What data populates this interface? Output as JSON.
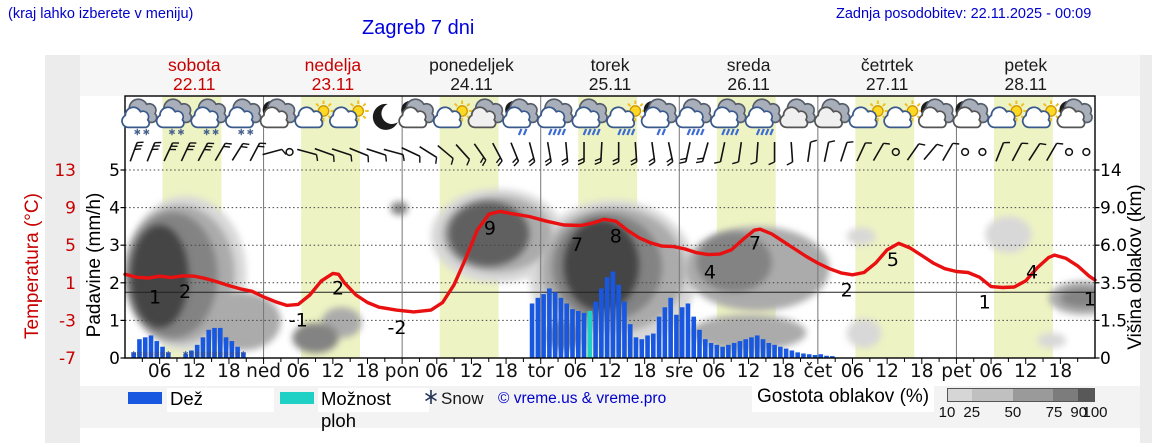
{
  "page": {
    "menu_note": "(kraj lahko izberete v meniju)",
    "title": "Zagreb 7 dni",
    "last_update": "Zadnja posodobitev: 22.11.2025 - 00:09"
  },
  "axes": {
    "temp_label": "Temperatura (°C)",
    "precip_label": "Padavine (mm/h)",
    "cloud_label": "Višina oblakov (km)"
  },
  "legend": {
    "rain": "Dež",
    "shower": "Možnost ploh",
    "snow": "Snow",
    "copyright": "© vreme.us & vreme.pro",
    "cloud_density": "Gostota oblakov (%)",
    "cloud_scale_labels": [
      "10",
      "25",
      "50",
      "75",
      "90",
      "100"
    ]
  },
  "colors": {
    "blue_text": "#0000cc",
    "red_text": "#c80000",
    "temp_line": "#e81010",
    "rain_bar": "#1857e0",
    "shower_bar": "#1fd0c4",
    "daylight_band": "#eef3c3",
    "cloud_scale": [
      "#d6d6d6",
      "#c0c0c0",
      "#9a9a9a",
      "#7c7c7c",
      "#585858"
    ]
  },
  "chart_data": {
    "type": "meteogram",
    "days": [
      {
        "name": "sobota",
        "date": "22.11",
        "color": "#c80000"
      },
      {
        "name": "nedelja",
        "date": "23.11",
        "color": "#c80000"
      },
      {
        "name": "ponedeljek",
        "date": "24.11",
        "color": "#1a1a1a"
      },
      {
        "name": "torek",
        "date": "25.11",
        "color": "#1a1a1a"
      },
      {
        "name": "sreda",
        "date": "26.11",
        "color": "#1a1a1a"
      },
      {
        "name": "četrtek",
        "date": "27.11",
        "color": "#1a1a1a"
      },
      {
        "name": "petek",
        "date": "28.11",
        "color": "#1a1a1a"
      }
    ],
    "day_abbrs": [
      "ned",
      "pon",
      "tor",
      "sre",
      "čet",
      "pet"
    ],
    "hour_labels": [
      "06",
      "12",
      "18"
    ],
    "temp_ticks": [
      "13",
      "9",
      "5",
      "1",
      "-3",
      "-7"
    ],
    "precip_ticks": [
      "5",
      "4",
      "3",
      "2",
      "1",
      "0"
    ],
    "cloud_ticks": [
      "14",
      "9.0",
      "6.0",
      "3.5",
      "1.5",
      "0"
    ],
    "temp_axis_range_c": [
      -7,
      13
    ],
    "precip_axis_range_mmh": [
      0,
      5
    ],
    "cloud_axis_km_ticks": [
      0,
      1.5,
      3.5,
      6.0,
      9.0,
      14
    ],
    "daylight_hours": [
      6.5,
      16.7
    ],
    "temperature_c": [
      [
        0,
        1.9
      ],
      [
        2,
        1.6
      ],
      [
        4,
        1.5
      ],
      [
        6,
        1.7
      ],
      [
        8,
        1.55
      ],
      [
        10,
        1.75
      ],
      [
        12,
        1.7
      ],
      [
        14,
        1.45
      ],
      [
        16,
        1.1
      ],
      [
        18,
        0.7
      ],
      [
        20,
        0.35
      ],
      [
        22,
        0.1
      ],
      [
        24,
        -0.5
      ],
      [
        26,
        -1.0
      ],
      [
        28,
        -1.4
      ],
      [
        30,
        -1.3
      ],
      [
        32,
        -0.3
      ],
      [
        34,
        1.2
      ],
      [
        36,
        2.0
      ],
      [
        37,
        1.9
      ],
      [
        38,
        1.0
      ],
      [
        40,
        -0.3
      ],
      [
        42,
        -1.1
      ],
      [
        44,
        -1.6
      ],
      [
        47,
        -1.9
      ],
      [
        50,
        -2.1
      ],
      [
        53,
        -1.9
      ],
      [
        55,
        -1.1
      ],
      [
        57,
        0.8
      ],
      [
        59,
        3.6
      ],
      [
        61,
        6.6
      ],
      [
        63,
        8.3
      ],
      [
        65,
        8.6
      ],
      [
        67,
        8.35
      ],
      [
        70,
        8.05
      ],
      [
        73,
        7.55
      ],
      [
        76,
        7.15
      ],
      [
        79,
        7.1
      ],
      [
        81,
        7.35
      ],
      [
        83,
        7.75
      ],
      [
        85,
        7.55
      ],
      [
        87,
        6.6
      ],
      [
        89,
        5.8
      ],
      [
        91,
        5.25
      ],
      [
        93,
        4.9
      ],
      [
        95,
        4.85
      ],
      [
        97,
        4.6
      ],
      [
        99,
        4.2
      ],
      [
        101,
        4.0
      ],
      [
        103,
        4.05
      ],
      [
        105,
        4.5
      ],
      [
        107,
        5.6
      ],
      [
        109,
        6.6
      ],
      [
        110,
        6.7
      ],
      [
        112,
        6.2
      ],
      [
        114,
        5.4
      ],
      [
        116,
        4.6
      ],
      [
        118,
        3.8
      ],
      [
        120,
        3.1
      ],
      [
        122,
        2.5
      ],
      [
        124,
        2.05
      ],
      [
        126,
        1.85
      ],
      [
        128,
        2.1
      ],
      [
        130,
        3.1
      ],
      [
        132,
        4.5
      ],
      [
        134,
        5.2
      ],
      [
        136,
        4.7
      ],
      [
        138,
        3.9
      ],
      [
        140,
        3.1
      ],
      [
        142,
        2.5
      ],
      [
        144,
        2.2
      ],
      [
        146,
        2.1
      ],
      [
        148,
        1.6
      ],
      [
        150,
        0.6
      ],
      [
        152,
        0.5
      ],
      [
        154,
        0.55
      ],
      [
        156,
        1.2
      ],
      [
        158,
        2.6
      ],
      [
        160,
        3.7
      ],
      [
        161,
        3.95
      ],
      [
        163,
        3.6
      ],
      [
        165,
        2.8
      ],
      [
        167,
        1.7
      ],
      [
        168,
        1.3
      ]
    ],
    "temperature_labels": [
      [
        5.2,
        -0.55,
        "1"
      ],
      [
        10.4,
        0,
        "2"
      ],
      [
        30,
        -3.0,
        "-1"
      ],
      [
        36.9,
        0.4,
        "2"
      ],
      [
        47.1,
        -3.8,
        "-2"
      ],
      [
        63.2,
        6.8,
        "9"
      ],
      [
        78.3,
        5.0,
        "7"
      ],
      [
        85.0,
        5.9,
        "8"
      ],
      [
        101.3,
        2.1,
        "4"
      ],
      [
        109.1,
        5.2,
        "7"
      ],
      [
        125.0,
        0.2,
        "2"
      ],
      [
        133.0,
        3.4,
        "5"
      ],
      [
        148.9,
        -1.1,
        "1"
      ],
      [
        157.1,
        2.1,
        "4"
      ],
      [
        167.1,
        -0.8,
        "1"
      ]
    ],
    "precipitation_mmh": [
      [
        1,
        0.15,
        "s"
      ],
      [
        2,
        0.5,
        "s"
      ],
      [
        3,
        0.55,
        "s"
      ],
      [
        4,
        0.6,
        "s"
      ],
      [
        5,
        0.45,
        "s"
      ],
      [
        6,
        0.3,
        "s"
      ],
      [
        7,
        0.15,
        "s"
      ],
      [
        10,
        0.1,
        "s"
      ],
      [
        11,
        0.2,
        "s"
      ],
      [
        12,
        0.35,
        "s"
      ],
      [
        13,
        0.55,
        "s"
      ],
      [
        14,
        0.75,
        "s"
      ],
      [
        15,
        0.8,
        "s"
      ],
      [
        16,
        0.8,
        "s"
      ],
      [
        17,
        0.55,
        "s"
      ],
      [
        18,
        0.45,
        "s"
      ],
      [
        19,
        0.3,
        "s"
      ],
      [
        20,
        0.15,
        "s"
      ],
      [
        70,
        1.45,
        "r"
      ],
      [
        71,
        1.6,
        "r"
      ],
      [
        72,
        1.7,
        "r"
      ],
      [
        73,
        1.85,
        "r"
      ],
      [
        74,
        1.75,
        "r"
      ],
      [
        75,
        1.6,
        "r"
      ],
      [
        76,
        1.45,
        "r"
      ],
      [
        77,
        1.3,
        "r"
      ],
      [
        78,
        1.25,
        "r"
      ],
      [
        79,
        1.2,
        "r"
      ],
      [
        80,
        1.25,
        "c"
      ],
      [
        81,
        1.5,
        "r"
      ],
      [
        82,
        1.85,
        "r"
      ],
      [
        83,
        2.15,
        "r"
      ],
      [
        84,
        2.3,
        "r"
      ],
      [
        85,
        1.95,
        "r"
      ],
      [
        86,
        1.5,
        "r"
      ],
      [
        87,
        0.9,
        "r"
      ],
      [
        88,
        0.55,
        "r"
      ],
      [
        89,
        0.5,
        "r"
      ],
      [
        90,
        0.6,
        "r"
      ],
      [
        91,
        0.65,
        "r"
      ],
      [
        92,
        1.1,
        "r"
      ],
      [
        93,
        1.35,
        "r"
      ],
      [
        94,
        1.6,
        "r"
      ],
      [
        95,
        1.15,
        "r"
      ],
      [
        96,
        1.35,
        "r"
      ],
      [
        97,
        1.45,
        "r"
      ],
      [
        98,
        1.1,
        "r"
      ],
      [
        99,
        0.75,
        "r"
      ],
      [
        100,
        0.5,
        "r"
      ],
      [
        101,
        0.4,
        "r"
      ],
      [
        102,
        0.35,
        "r"
      ],
      [
        103,
        0.3,
        "r"
      ],
      [
        104,
        0.35,
        "r"
      ],
      [
        105,
        0.4,
        "r"
      ],
      [
        106,
        0.45,
        "r"
      ],
      [
        107,
        0.5,
        "r"
      ],
      [
        108,
        0.55,
        "r"
      ],
      [
        109,
        0.6,
        "r"
      ],
      [
        110,
        0.5,
        "r"
      ],
      [
        111,
        0.4,
        "r"
      ],
      [
        112,
        0.35,
        "r"
      ],
      [
        113,
        0.3,
        "r"
      ],
      [
        114,
        0.25,
        "r"
      ],
      [
        115,
        0.2,
        "r"
      ],
      [
        116,
        0.15,
        "r"
      ],
      [
        117,
        0.12,
        "r"
      ],
      [
        118,
        0.1,
        "r"
      ],
      [
        119,
        0.08,
        "r"
      ],
      [
        120,
        0.1,
        "r"
      ],
      [
        121,
        0.06,
        "r"
      ],
      [
        122,
        0.05,
        "r"
      ]
    ],
    "weather_icons": [
      [
        "snow-cloud",
        "snow-cloud",
        "snow-cloud",
        "snow-cloud"
      ],
      [
        "moon-cloud",
        "sun-cloud",
        "sun-cloud",
        "moon"
      ],
      [
        "moon-cloud",
        "sun-cloud",
        "cloud",
        "moon-rain"
      ],
      [
        "rain-cloud",
        "rain-cloud",
        "sun-rain",
        "moon-rain"
      ],
      [
        "rain-cloud",
        "rain-cloud",
        "rain-cloud",
        "cloud"
      ],
      [
        "cloud",
        "sun-cloud",
        "sun-cloud",
        "moon-cloud"
      ],
      [
        "moon-cloud",
        "sun-cloud",
        "sun-cloud",
        "moon-cloud"
      ]
    ],
    "wind_barbs": [
      [
        20,
        3
      ],
      [
        22,
        3
      ],
      [
        25,
        3
      ],
      [
        25,
        3
      ],
      [
        28,
        3
      ],
      [
        30,
        2
      ],
      [
        32,
        2
      ],
      [
        28,
        2
      ],
      [
        75,
        1
      ],
      "o",
      [
        105,
        1
      ],
      [
        110,
        1
      ],
      [
        108,
        1
      ],
      [
        112,
        1
      ],
      [
        108,
        1
      ],
      [
        105,
        1
      ],
      [
        115,
        1
      ],
      [
        122,
        1
      ],
      [
        130,
        1
      ],
      [
        138,
        1
      ],
      [
        145,
        2
      ],
      [
        152,
        2
      ],
      [
        158,
        2
      ],
      [
        165,
        2
      ],
      [
        170,
        2
      ],
      [
        175,
        2
      ],
      [
        180,
        2
      ],
      [
        183,
        2
      ],
      [
        180,
        2
      ],
      [
        176,
        2
      ],
      [
        172,
        2
      ],
      [
        168,
        2
      ],
      [
        192,
        2
      ],
      [
        196,
        2
      ],
      [
        192,
        1
      ],
      [
        188,
        1
      ],
      [
        184,
        1
      ],
      [
        180,
        1
      ],
      [
        176,
        1
      ],
      [
        8,
        1
      ],
      [
        12,
        1
      ],
      [
        18,
        1
      ],
      [
        25,
        1
      ],
      [
        30,
        1
      ],
      "o",
      [
        35,
        1
      ],
      [
        40,
        1
      ],
      [
        30,
        1
      ],
      "o",
      "o",
      [
        22,
        1
      ],
      [
        28,
        1
      ],
      [
        33,
        1
      ],
      [
        30,
        1
      ],
      "o",
      "o"
    ],
    "cloud_cover_blobs_h_km_density": [
      [
        0,
        21,
        0.3,
        10.5,
        25
      ],
      [
        0,
        19,
        0.6,
        9.3,
        50
      ],
      [
        0.5,
        16,
        0.8,
        8.6,
        75
      ],
      [
        1,
        11,
        1.2,
        7.6,
        100
      ],
      [
        14,
        27,
        0.3,
        3,
        50
      ],
      [
        29,
        37,
        0.2,
        1.4,
        75
      ],
      [
        34,
        41,
        0.8,
        2.2,
        50
      ],
      [
        46,
        49,
        8.4,
        9.8,
        75
      ],
      [
        53,
        76,
        3.5,
        11.5,
        25
      ],
      [
        55,
        74,
        4.2,
        10.5,
        50
      ],
      [
        56,
        70,
        4.6,
        9.8,
        90
      ],
      [
        70,
        99,
        0.3,
        10,
        25
      ],
      [
        72,
        97,
        1,
        9,
        50
      ],
      [
        74,
        93,
        1.5,
        8.5,
        75
      ],
      [
        76,
        89,
        2,
        8,
        100
      ],
      [
        73,
        79,
        0.3,
        1.5,
        75
      ],
      [
        97,
        122,
        2,
        7.5,
        50
      ],
      [
        99,
        112,
        3,
        7,
        75
      ],
      [
        98,
        118,
        0.3,
        1.8,
        50
      ],
      [
        125,
        131,
        0.4,
        1.6,
        25
      ],
      [
        125,
        130,
        6,
        7.4,
        25
      ],
      [
        149,
        157,
        5.5,
        8.3,
        25
      ],
      [
        158,
        163,
        0.4,
        1,
        25
      ],
      [
        160,
        172,
        1.8,
        3.6,
        50
      ],
      [
        162,
        170,
        2.2,
        3.2,
        75
      ]
    ]
  }
}
